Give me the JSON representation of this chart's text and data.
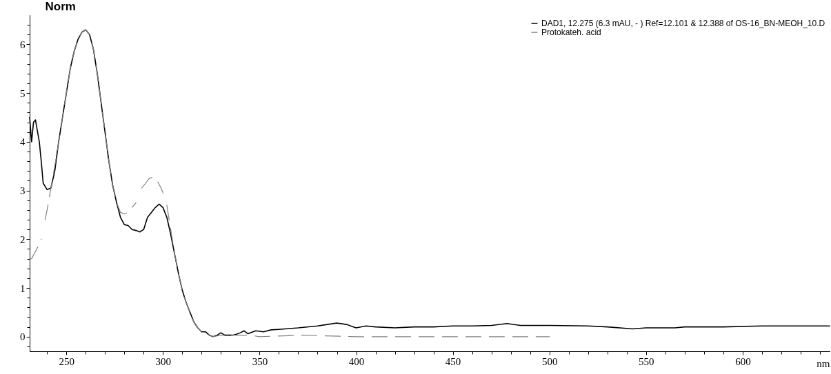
{
  "chart_data": {
    "type": "line",
    "xlabel": "nm",
    "ylabel": "Norm",
    "xlim": [
      231,
      645
    ],
    "ylim": [
      -0.3,
      6.6
    ],
    "xticks": [
      {
        "value": 240,
        "label": null
      },
      250,
      {
        "value": 260,
        "label": null
      },
      {
        "value": 270,
        "label": null
      },
      {
        "value": 280,
        "label": null
      },
      {
        "value": 290,
        "label": null
      },
      300,
      {
        "value": 310,
        "label": null
      },
      {
        "value": 320,
        "label": null
      },
      {
        "value": 330,
        "label": null
      },
      {
        "value": 340,
        "label": null
      },
      350,
      {
        "value": 360,
        "label": null
      },
      {
        "value": 370,
        "label": null
      },
      {
        "value": 380,
        "label": null
      },
      {
        "value": 390,
        "label": null
      },
      400,
      {
        "value": 410,
        "label": null
      },
      {
        "value": 420,
        "label": null
      },
      {
        "value": 430,
        "label": null
      },
      {
        "value": 440,
        "label": null
      },
      450,
      {
        "value": 460,
        "label": null
      },
      {
        "value": 470,
        "label": null
      },
      {
        "value": 480,
        "label": null
      },
      {
        "value": 490,
        "label": null
      },
      500,
      {
        "value": 510,
        "label": null
      },
      {
        "value": 520,
        "label": null
      },
      {
        "value": 530,
        "label": null
      },
      {
        "value": 540,
        "label": null
      },
      550,
      {
        "value": 560,
        "label": null
      },
      {
        "value": 570,
        "label": null
      },
      {
        "value": 580,
        "label": null
      },
      {
        "value": 590,
        "label": null
      },
      600,
      {
        "value": 610,
        "label": null
      },
      {
        "value": 620,
        "label": null
      },
      {
        "value": 630,
        "label": null
      },
      {
        "value": 640,
        "label": null
      }
    ],
    "yticks": [
      {
        "value": -0.2,
        "label": null
      },
      0,
      {
        "value": 0.2,
        "label": null
      },
      {
        "value": 0.4,
        "label": null
      },
      {
        "value": 0.6,
        "label": null
      },
      {
        "value": 0.8,
        "label": null
      },
      1,
      {
        "value": 1.2,
        "label": null
      },
      {
        "value": 1.4,
        "label": null
      },
      {
        "value": 1.6,
        "label": null
      },
      {
        "value": 1.8,
        "label": null
      },
      2,
      {
        "value": 2.2,
        "label": null
      },
      {
        "value": 2.4,
        "label": null
      },
      {
        "value": 2.6,
        "label": null
      },
      {
        "value": 2.8,
        "label": null
      },
      3,
      {
        "value": 3.2,
        "label": null
      },
      {
        "value": 3.4,
        "label": null
      },
      {
        "value": 3.6,
        "label": null
      },
      {
        "value": 3.8,
        "label": null
      },
      4,
      {
        "value": 4.2,
        "label": null
      },
      {
        "value": 4.4,
        "label": null
      },
      {
        "value": 4.6,
        "label": null
      },
      {
        "value": 4.8,
        "label": null
      },
      5,
      {
        "value": 5.2,
        "label": null
      },
      {
        "value": 5.4,
        "label": null
      },
      {
        "value": 5.6,
        "label": null
      },
      {
        "value": 5.8,
        "label": null
      },
      6,
      {
        "value": 6.2,
        "label": null
      },
      {
        "value": 6.4,
        "label": null
      }
    ],
    "grid": false,
    "legend": "top right",
    "series": [
      {
        "name": "DAD1, 12.275 (6.3 mAU, - ) Ref=12.101 & 12.388 of OS-16_BN-MEOH_10.D",
        "color": "#000000",
        "line_style": "solid",
        "x": [
          231,
          232,
          233,
          234,
          236,
          237,
          238,
          240,
          242,
          244,
          246,
          248,
          250,
          252,
          254,
          256,
          258,
          260,
          262,
          264,
          266,
          268,
          270,
          272,
          274,
          276,
          278,
          280,
          282,
          284,
          286,
          288,
          290,
          292,
          294,
          296,
          298,
          300,
          302,
          304,
          306,
          308,
          310,
          312,
          314,
          316,
          318,
          320,
          322,
          324,
          326,
          328,
          330,
          332,
          336,
          338,
          340,
          342,
          344,
          348,
          352,
          356,
          360,
          370,
          380,
          385,
          390,
          395,
          400,
          405,
          410,
          420,
          430,
          440,
          450,
          460,
          470,
          478,
          485,
          500,
          520,
          530,
          543,
          550,
          565,
          570,
          590,
          610,
          645
        ],
        "values": [
          4.5,
          4.0,
          4.4,
          4.45,
          4.0,
          3.6,
          3.15,
          3.02,
          3.05,
          3.4,
          4.0,
          4.5,
          5.0,
          5.5,
          5.85,
          6.1,
          6.25,
          6.3,
          6.2,
          5.9,
          5.4,
          4.8,
          4.2,
          3.6,
          3.1,
          2.75,
          2.45,
          2.3,
          2.28,
          2.2,
          2.18,
          2.15,
          2.2,
          2.45,
          2.55,
          2.65,
          2.72,
          2.65,
          2.45,
          2.1,
          1.7,
          1.3,
          0.95,
          0.7,
          0.5,
          0.3,
          0.18,
          0.1,
          0.1,
          0.03,
          0.0,
          0.03,
          0.08,
          0.03,
          0.03,
          0.05,
          0.08,
          0.12,
          0.06,
          0.12,
          0.1,
          0.14,
          0.15,
          0.18,
          0.22,
          0.25,
          0.28,
          0.25,
          0.18,
          0.22,
          0.2,
          0.18,
          0.2,
          0.2,
          0.22,
          0.22,
          0.23,
          0.27,
          0.23,
          0.23,
          0.22,
          0.2,
          0.16,
          0.18,
          0.18,
          0.2,
          0.2,
          0.22,
          0.22
        ]
      },
      {
        "name": "Protokateh. acid",
        "color": "#808080",
        "line_style": "dashed",
        "x": [
          231,
          232,
          234,
          236,
          237,
          238,
          239,
          240.5,
          242,
          244,
          246,
          248,
          250,
          252,
          254,
          256,
          258,
          260,
          262,
          264,
          266,
          268,
          270,
          272,
          274,
          276,
          278,
          280,
          282,
          284,
          286,
          287.5,
          289,
          291,
          293,
          295,
          297,
          299,
          300,
          301,
          302,
          304,
          306,
          308,
          310,
          312,
          314,
          316,
          318,
          320,
          322,
          324,
          326,
          330,
          345,
          350,
          372,
          400,
          450,
          500
        ],
        "values": [
          1.6,
          1.6,
          1.75,
          1.9,
          2.0,
          null,
          2.4,
          2.7,
          3.05,
          3.5,
          4.0,
          4.5,
          5.0,
          5.5,
          5.85,
          6.1,
          6.25,
          6.3,
          6.2,
          5.9,
          5.4,
          4.8,
          4.2,
          3.6,
          3.1,
          2.75,
          2.55,
          2.52,
          2.55,
          2.65,
          2.75,
          null,
          3.05,
          3.15,
          3.25,
          3.28,
          3.2,
          3.05,
          2.95,
          null,
          2.7,
          2.2,
          1.7,
          1.3,
          0.95,
          0.7,
          0.5,
          0.3,
          0.18,
          0.1,
          0.08,
          0.03,
          0.0,
          0.03,
          0.03,
          0.0,
          0.03,
          0.0,
          0.0,
          0.0
        ]
      }
    ]
  }
}
